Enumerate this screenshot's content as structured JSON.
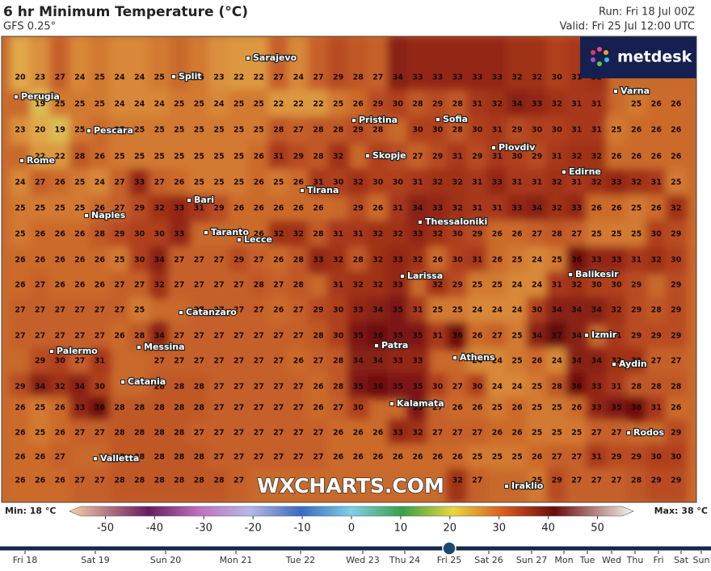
{
  "header": {
    "title": "6 hr Minimum Temperature (°C)",
    "model": "GFS 0.25°",
    "run": "Run: Fri 18 Jul 00Z",
    "valid": "Valid: Fri 25 Jul 12:00 UTC"
  },
  "logo": "metdesk",
  "watermark": "WXCHARTS.COM",
  "grid": {
    "rows": [
      [
        20,
        23,
        27,
        24,
        25,
        24,
        24,
        25,
        null,
        25,
        23,
        22,
        22,
        27,
        24,
        27,
        29,
        28,
        27,
        34,
        33,
        33,
        33,
        33,
        33,
        32,
        32,
        30,
        31,
        32,
        null,
        null,
        null,
        null
      ],
      [
        null,
        19,
        25,
        25,
        25,
        24,
        24,
        24,
        25,
        25,
        24,
        25,
        25,
        22,
        22,
        22,
        25,
        26,
        29,
        30,
        28,
        29,
        28,
        31,
        32,
        34,
        33,
        32,
        31,
        31,
        null,
        25,
        26,
        26
      ],
      [
        23,
        20,
        19,
        25,
        null,
        25,
        25,
        25,
        25,
        25,
        25,
        25,
        25,
        28,
        27,
        28,
        28,
        29,
        28,
        null,
        30,
        30,
        28,
        30,
        31,
        29,
        30,
        30,
        31,
        31,
        25,
        26,
        26,
        26
      ],
      [
        null,
        22,
        22,
        28,
        26,
        25,
        25,
        25,
        25,
        25,
        25,
        25,
        26,
        31,
        29,
        28,
        32,
        null,
        30,
        29,
        27,
        29,
        31,
        29,
        31,
        30,
        29,
        31,
        32,
        32,
        26,
        26,
        26,
        26
      ],
      [
        24,
        27,
        26,
        25,
        24,
        27,
        33,
        27,
        26,
        25,
        25,
        25,
        26,
        25,
        26,
        31,
        30,
        32,
        30,
        30,
        31,
        32,
        32,
        31,
        33,
        31,
        31,
        32,
        31,
        32,
        33,
        32,
        31,
        25
      ],
      [
        25,
        25,
        25,
        25,
        26,
        27,
        29,
        32,
        33,
        31,
        29,
        26,
        26,
        26,
        26,
        26,
        null,
        29,
        26,
        31,
        34,
        33,
        32,
        31,
        31,
        33,
        34,
        32,
        33,
        26,
        26,
        25,
        26,
        32
      ],
      [
        25,
        26,
        26,
        26,
        28,
        29,
        30,
        30,
        33,
        null,
        null,
        null,
        26,
        32,
        32,
        28,
        31,
        31,
        32,
        32,
        33,
        32,
        30,
        29,
        26,
        26,
        27,
        28,
        27,
        25,
        25,
        25,
        30,
        29
      ],
      [
        26,
        26,
        26,
        26,
        26,
        25,
        30,
        34,
        27,
        27,
        27,
        29,
        27,
        26,
        28,
        33,
        32,
        28,
        32,
        33,
        32,
        26,
        30,
        31,
        26,
        25,
        24,
        25,
        36,
        33,
        33,
        31,
        32,
        30
      ],
      [
        26,
        27,
        26,
        26,
        26,
        27,
        27,
        32,
        27,
        27,
        27,
        27,
        28,
        27,
        28,
        null,
        31,
        32,
        32,
        33,
        null,
        32,
        29,
        25,
        25,
        24,
        24,
        31,
        32,
        30,
        30,
        29,
        null,
        29
      ],
      [
        27,
        27,
        27,
        27,
        27,
        27,
        25,
        null,
        null,
        27,
        27,
        27,
        27,
        26,
        27,
        29,
        30,
        33,
        34,
        35,
        31,
        25,
        25,
        24,
        24,
        24,
        30,
        34,
        34,
        34,
        32,
        29,
        28,
        29
      ],
      [
        27,
        27,
        27,
        27,
        27,
        26,
        28,
        34,
        27,
        27,
        27,
        27,
        27,
        27,
        27,
        28,
        30,
        35,
        36,
        35,
        35,
        31,
        36,
        26,
        27,
        25,
        34,
        37,
        34,
        null,
        31,
        29,
        29,
        29
      ],
      [
        null,
        29,
        30,
        27,
        31,
        null,
        null,
        27,
        27,
        27,
        27,
        27,
        27,
        27,
        26,
        27,
        28,
        34,
        34,
        33,
        33,
        null,
        null,
        24,
        24,
        25,
        26,
        24,
        34,
        34,
        32,
        32,
        27,
        27
      ],
      [
        29,
        34,
        32,
        34,
        30,
        null,
        null,
        28,
        28,
        28,
        27,
        27,
        27,
        27,
        27,
        26,
        28,
        35,
        36,
        35,
        35,
        30,
        27,
        30,
        24,
        24,
        25,
        28,
        36,
        33,
        31,
        28,
        28,
        28
      ],
      [
        26,
        25,
        26,
        33,
        36,
        28,
        28,
        28,
        28,
        28,
        27,
        27,
        27,
        27,
        27,
        26,
        27,
        30,
        null,
        null,
        35,
        27,
        26,
        26,
        25,
        26,
        25,
        25,
        26,
        33,
        35,
        36,
        31,
        26
      ],
      [
        26,
        25,
        26,
        27,
        27,
        28,
        28,
        28,
        28,
        27,
        27,
        27,
        27,
        27,
        27,
        27,
        26,
        26,
        26,
        33,
        32,
        27,
        27,
        27,
        26,
        26,
        25,
        25,
        25,
        27,
        27,
        null,
        null,
        29
      ],
      [
        26,
        26,
        27,
        null,
        null,
        28,
        28,
        28,
        28,
        28,
        27,
        27,
        27,
        27,
        27,
        27,
        26,
        26,
        26,
        26,
        26,
        26,
        26,
        25,
        25,
        25,
        26,
        27,
        27,
        31,
        29,
        29,
        30,
        30
      ],
      [
        26,
        26,
        26,
        27,
        27,
        28,
        28,
        28,
        28,
        28,
        28,
        27,
        null,
        null,
        null,
        null,
        null,
        null,
        null,
        null,
        null,
        null,
        32,
        27,
        null,
        null,
        25,
        29,
        27,
        27,
        27,
        28,
        29,
        29
      ]
    ]
  },
  "cities": [
    "Sarajevo",
    "Split",
    "Perugia",
    "Pescara",
    "Pristina",
    "Sofia",
    "Varna",
    "Plovdiv",
    "Rome",
    "Skopje",
    "Edirne",
    "Bari",
    "Tirana",
    "Naples",
    "Thessaloniki",
    "Taranto",
    "Lecce",
    "Larissa",
    "Balikesir",
    "Catanzaro",
    "Izmir",
    "Palermo",
    "Messina",
    "Patra",
    "Athens",
    "Aydin",
    "Catania",
    "Kalamata",
    "Rodos",
    "Valletta",
    "Iraklio"
  ],
  "colorbar": {
    "min_label": "Min: 18 °C",
    "max_label": "Max: 38 °C",
    "range": [
      -55,
      55
    ],
    "ticks": [
      -50,
      -40,
      -30,
      -20,
      -10,
      0,
      10,
      20,
      30,
      40,
      50
    ]
  },
  "timeline": {
    "labels": [
      "Fri 18",
      "Sat 19",
      "Sun 20",
      "Mon 21",
      "Tue 22",
      "Wed 23",
      "Thu 24",
      "Fri 25",
      "Sat 26",
      "Sun 27",
      "Mon",
      "Tue",
      "Wed",
      "Thu",
      "Fri",
      "Sat",
      "Sun"
    ]
  }
}
